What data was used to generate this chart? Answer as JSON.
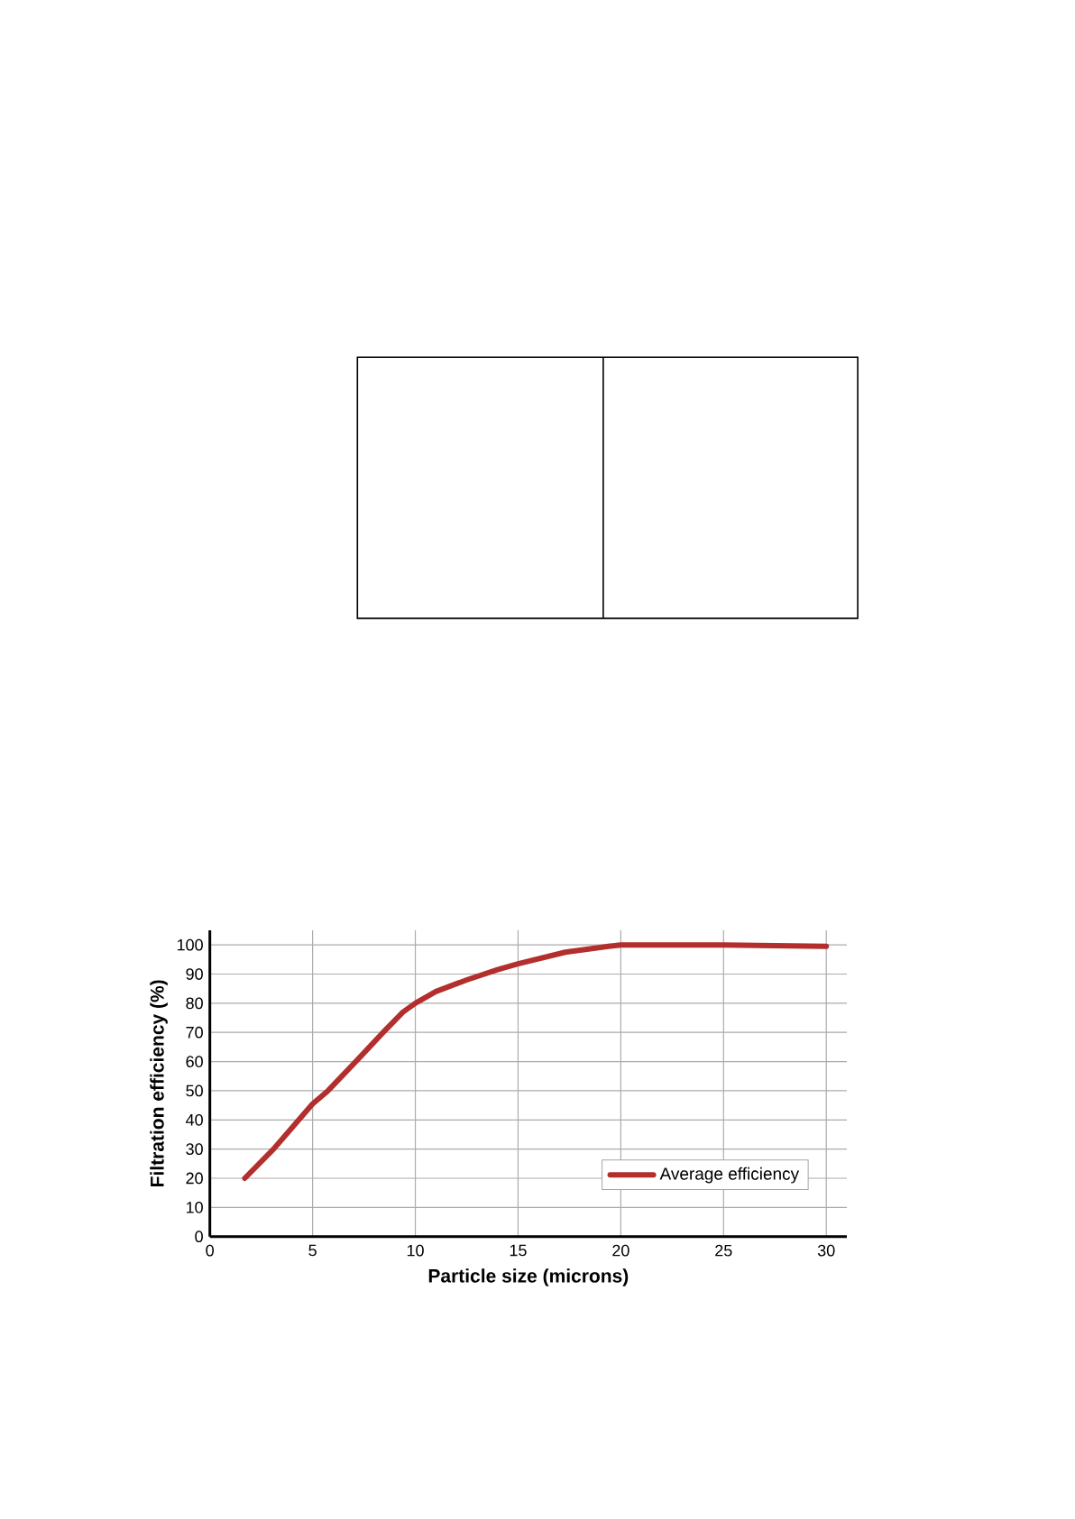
{
  "chart_data": {
    "type": "line",
    "xlabel": "Particle size (microns)",
    "ylabel": "Filtration efficiency (%)",
    "x": [
      1.7,
      3.1,
      5.0,
      5.75,
      7.1,
      8.5,
      9.4,
      10,
      11,
      12.5,
      14,
      15,
      17.3,
      19.4,
      20,
      25,
      30
    ],
    "series": [
      {
        "name": "Average efficiency",
        "color": "#b22f2e",
        "values": [
          20,
          30,
          45.5,
          50,
          60,
          70.5,
          77,
          80,
          84,
          88,
          91.5,
          93.5,
          97.5,
          99.5,
          100,
          100,
          99.5
        ]
      }
    ],
    "xlim": [
      0,
      31
    ],
    "ylim": [
      0,
      105
    ],
    "xticks": [
      0,
      5,
      10,
      15,
      20,
      25,
      30
    ],
    "yticks": [
      0,
      10,
      20,
      30,
      40,
      50,
      60,
      70,
      80,
      90,
      100
    ],
    "grid": true,
    "legend": "bottom right",
    "line_style": "solid"
  }
}
